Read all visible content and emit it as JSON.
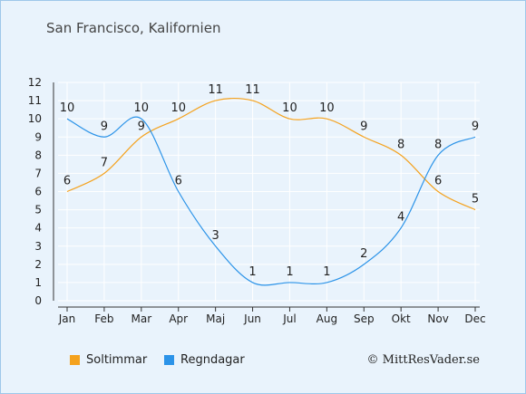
{
  "header": {
    "title": "San Francisco, Kalifornien"
  },
  "chart_data": {
    "type": "line",
    "categories": [
      "Jan",
      "Feb",
      "Mar",
      "Apr",
      "Maj",
      "Jun",
      "Jul",
      "Aug",
      "Sep",
      "Okt",
      "Nov",
      "Dec"
    ],
    "ylim": [
      0,
      12
    ],
    "yticks": [
      0,
      1,
      2,
      3,
      4,
      5,
      6,
      7,
      8,
      9,
      10,
      11,
      12
    ],
    "grid": true,
    "legend_position": "bottom-left",
    "series": [
      {
        "name": "Soltimmar",
        "color": "#f4a21e",
        "values": [
          6,
          7,
          9,
          10,
          11,
          11,
          10,
          10,
          9,
          8,
          6,
          5
        ]
      },
      {
        "name": "Regndagar",
        "color": "#2b93e8",
        "values": [
          10,
          9,
          10,
          6,
          3,
          1,
          1,
          1,
          2,
          4,
          8,
          9
        ]
      }
    ]
  },
  "footer": {
    "credit": "© MittResVader.se"
  }
}
